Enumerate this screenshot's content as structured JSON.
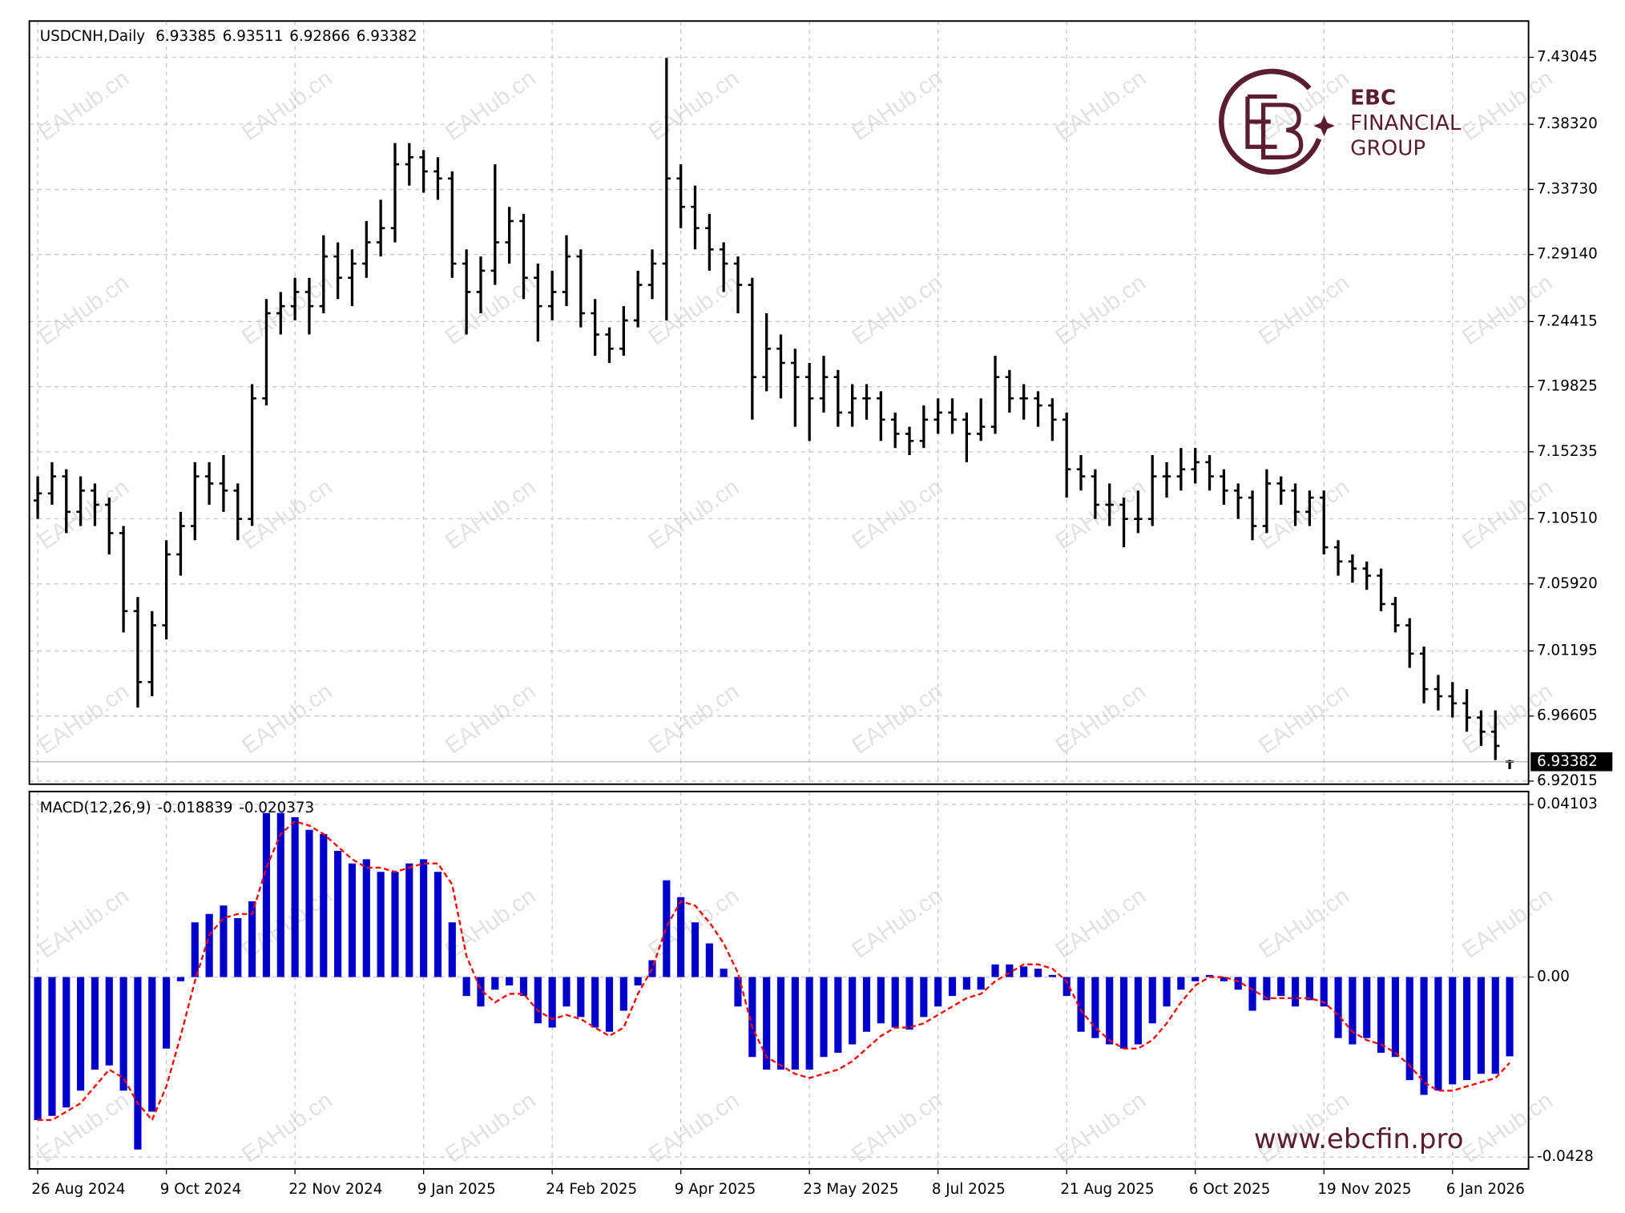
{
  "chart_data": [
    {
      "type": "ohlc",
      "title": "USDCNH,Daily",
      "color": "#000000",
      "grid": true,
      "categories": [
        "26 Aug 2024",
        null,
        null,
        null,
        null,
        null,
        null,
        null,
        null,
        "9 Oct 2024",
        null,
        null,
        null,
        null,
        null,
        null,
        null,
        null,
        "22 Nov 2024",
        null,
        null,
        null,
        null,
        null,
        null,
        null,
        null,
        "9 Jan 2025",
        null,
        null,
        null,
        null,
        null,
        null,
        null,
        null,
        "24 Feb 2025",
        null,
        null,
        null,
        null,
        null,
        null,
        null,
        null,
        "9 Apr 2025",
        null,
        null,
        null,
        null,
        null,
        null,
        null,
        null,
        "23 May 2025",
        null,
        null,
        null,
        null,
        null,
        null,
        null,
        null,
        "8 Jul 2025",
        null,
        null,
        null,
        null,
        null,
        null,
        null,
        null,
        "21 Aug 2025",
        null,
        null,
        null,
        null,
        null,
        null,
        null,
        null,
        "6 Oct 2025",
        null,
        null,
        null,
        null,
        null,
        null,
        null,
        null,
        "19 Nov 2025",
        null,
        null,
        null,
        null,
        null,
        null,
        null,
        null,
        "6 Jan 2026",
        null,
        null,
        null,
        null
      ],
      "ohlc": [
        [
          7.118,
          7.135,
          7.105,
          7.123
        ],
        [
          7.123,
          7.145,
          7.115,
          7.135
        ],
        [
          7.135,
          7.14,
          7.095,
          7.11
        ],
        [
          7.11,
          7.135,
          7.1,
          7.125
        ],
        [
          7.125,
          7.13,
          7.1,
          7.115
        ],
        [
          7.115,
          7.12,
          7.08,
          7.095
        ],
        [
          7.095,
          7.1,
          7.025,
          7.04
        ],
        [
          7.04,
          7.05,
          6.972,
          6.99
        ],
        [
          6.99,
          7.04,
          6.98,
          7.03
        ],
        [
          7.03,
          7.09,
          7.02,
          7.08
        ],
        [
          7.08,
          7.11,
          7.065,
          7.1
        ],
        [
          7.1,
          7.145,
          7.09,
          7.135
        ],
        [
          7.135,
          7.145,
          7.115,
          7.13
        ],
        [
          7.13,
          7.15,
          7.11,
          7.125
        ],
        [
          7.125,
          7.13,
          7.09,
          7.105
        ],
        [
          7.105,
          7.2,
          7.1,
          7.19
        ],
        [
          7.19,
          7.26,
          7.185,
          7.25
        ],
        [
          7.25,
          7.265,
          7.235,
          7.255
        ],
        [
          7.255,
          7.275,
          7.245,
          7.265
        ],
        [
          7.265,
          7.275,
          7.235,
          7.255
        ],
        [
          7.255,
          7.305,
          7.25,
          7.29
        ],
        [
          7.29,
          7.3,
          7.26,
          7.275
        ],
        [
          7.275,
          7.295,
          7.255,
          7.285
        ],
        [
          7.285,
          7.315,
          7.275,
          7.3
        ],
        [
          7.3,
          7.33,
          7.29,
          7.31
        ],
        [
          7.31,
          7.37,
          7.3,
          7.355
        ],
        [
          7.355,
          7.37,
          7.34,
          7.36
        ],
        [
          7.36,
          7.365,
          7.335,
          7.35
        ],
        [
          7.35,
          7.36,
          7.33,
          7.345
        ],
        [
          7.345,
          7.35,
          7.275,
          7.285
        ],
        [
          7.285,
          7.295,
          7.235,
          7.265
        ],
        [
          7.265,
          7.29,
          7.25,
          7.28
        ],
        [
          7.28,
          7.355,
          7.27,
          7.3
        ],
        [
          7.3,
          7.325,
          7.285,
          7.315
        ],
        [
          7.315,
          7.32,
          7.26,
          7.275
        ],
        [
          7.275,
          7.285,
          7.23,
          7.255
        ],
        [
          7.255,
          7.28,
          7.245,
          7.265
        ],
        [
          7.265,
          7.305,
          7.255,
          7.29
        ],
        [
          7.29,
          7.295,
          7.24,
          7.25
        ],
        [
          7.25,
          7.26,
          7.22,
          7.235
        ],
        [
          7.235,
          7.24,
          7.215,
          7.225
        ],
        [
          7.225,
          7.255,
          7.22,
          7.245
        ],
        [
          7.245,
          7.28,
          7.24,
          7.27
        ],
        [
          7.27,
          7.295,
          7.26,
          7.285
        ],
        [
          7.285,
          7.43,
          7.245,
          7.345
        ],
        [
          7.345,
          7.355,
          7.31,
          7.325
        ],
        [
          7.325,
          7.34,
          7.295,
          7.31
        ],
        [
          7.31,
          7.32,
          7.28,
          7.295
        ],
        [
          7.295,
          7.3,
          7.265,
          7.285
        ],
        [
          7.285,
          7.29,
          7.25,
          7.27
        ],
        [
          7.27,
          7.275,
          7.175,
          7.205
        ],
        [
          7.205,
          7.25,
          7.195,
          7.225
        ],
        [
          7.225,
          7.235,
          7.19,
          7.215
        ],
        [
          7.215,
          7.225,
          7.17,
          7.205
        ],
        [
          7.205,
          7.215,
          7.16,
          7.19
        ],
        [
          7.19,
          7.22,
          7.18,
          7.205
        ],
        [
          7.205,
          7.21,
          7.17,
          7.18
        ],
        [
          7.18,
          7.2,
          7.17,
          7.19
        ],
        [
          7.19,
          7.2,
          7.175,
          7.19
        ],
        [
          7.19,
          7.195,
          7.16,
          7.175
        ],
        [
          7.175,
          7.18,
          7.155,
          7.165
        ],
        [
          7.165,
          7.17,
          7.15,
          7.16
        ],
        [
          7.16,
          7.185,
          7.155,
          7.175
        ],
        [
          7.175,
          7.19,
          7.165,
          7.18
        ],
        [
          7.18,
          7.19,
          7.165,
          7.175
        ],
        [
          7.175,
          7.18,
          7.145,
          7.165
        ],
        [
          7.165,
          7.19,
          7.16,
          7.17
        ],
        [
          7.17,
          7.22,
          7.165,
          7.205
        ],
        [
          7.205,
          7.21,
          7.18,
          7.19
        ],
        [
          7.19,
          7.2,
          7.175,
          7.19
        ],
        [
          7.19,
          7.195,
          7.17,
          7.185
        ],
        [
          7.185,
          7.19,
          7.16,
          7.175
        ],
        [
          7.175,
          7.18,
          7.12,
          7.14
        ],
        [
          7.14,
          7.15,
          7.125,
          7.135
        ],
        [
          7.135,
          7.14,
          7.105,
          7.115
        ],
        [
          7.115,
          7.13,
          7.1,
          7.115
        ],
        [
          7.115,
          7.12,
          7.085,
          7.105
        ],
        [
          7.105,
          7.125,
          7.095,
          7.105
        ],
        [
          7.105,
          7.15,
          7.1,
          7.135
        ],
        [
          7.135,
          7.145,
          7.12,
          7.135
        ],
        [
          7.135,
          7.155,
          7.125,
          7.14
        ],
        [
          7.14,
          7.155,
          7.13,
          7.145
        ],
        [
          7.145,
          7.15,
          7.125,
          7.135
        ],
        [
          7.135,
          7.14,
          7.115,
          7.125
        ],
        [
          7.125,
          7.13,
          7.105,
          7.12
        ],
        [
          7.12,
          7.125,
          7.09,
          7.1
        ],
        [
          7.1,
          7.14,
          7.095,
          7.13
        ],
        [
          7.13,
          7.135,
          7.115,
          7.125
        ],
        [
          7.125,
          7.13,
          7.1,
          7.11
        ],
        [
          7.11,
          7.125,
          7.1,
          7.12
        ],
        [
          7.12,
          7.125,
          7.08,
          7.085
        ],
        [
          7.085,
          7.09,
          7.065,
          7.075
        ],
        [
          7.075,
          7.08,
          7.06,
          7.07
        ],
        [
          7.07,
          7.075,
          7.055,
          7.065
        ],
        [
          7.065,
          7.07,
          7.04,
          7.045
        ],
        [
          7.045,
          7.05,
          7.025,
          7.03
        ],
        [
          7.03,
          7.035,
          7.0,
          7.01
        ],
        [
          7.01,
          7.015,
          6.975,
          6.985
        ],
        [
          6.985,
          6.995,
          6.97,
          6.98
        ],
        [
          6.98,
          6.99,
          6.965,
          6.975
        ],
        [
          6.975,
          6.985,
          6.955,
          6.965
        ],
        [
          6.965,
          6.97,
          6.945,
          6.955
        ],
        [
          6.955,
          6.97,
          6.935,
          6.945
        ],
        [
          6.93385,
          6.93511,
          6.92866,
          6.93382
        ]
      ],
      "ylim": [
        6.918,
        7.456
      ],
      "yticks": [
        7.43045,
        {
          "value": 7.3832,
          "label": "7.38320"
        },
        {
          "value": 7.3373,
          "label": "7.33730"
        },
        {
          "value": 7.2914,
          "label": "7.29140"
        },
        7.24415,
        7.19825,
        7.15235,
        {
          "value": 7.1051,
          "label": "7.10510"
        },
        {
          "value": 7.0592,
          "label": "7.05920"
        },
        7.01195,
        6.96605,
        6.92015
      ]
    },
    {
      "type": "macd",
      "title": "MACD(12,26,9)",
      "grid": true,
      "histogram": {
        "color": "#0000cd",
        "values": [
          -0.034,
          -0.033,
          -0.031,
          -0.027,
          -0.022,
          -0.021,
          -0.027,
          -0.041,
          -0.032,
          -0.017,
          -0.001,
          0.013,
          0.015,
          0.017,
          0.014,
          0.018,
          0.039,
          0.039,
          0.038,
          0.035,
          0.034,
          0.03,
          0.027,
          0.028,
          0.025,
          0.025,
          0.027,
          0.028,
          0.025,
          0.013,
          -0.0045,
          -0.007,
          -0.003,
          -0.002,
          -0.0045,
          -0.011,
          -0.012,
          -0.007,
          -0.0095,
          -0.012,
          -0.013,
          -0.008,
          -0.002,
          0.004,
          0.023,
          0.019,
          0.013,
          0.008,
          0.002,
          -0.007,
          -0.019,
          -0.022,
          -0.022,
          -0.022,
          -0.022,
          -0.019,
          -0.018,
          -0.016,
          -0.013,
          -0.011,
          -0.012,
          -0.0125,
          -0.0095,
          -0.007,
          -0.0045,
          -0.003,
          -0.003,
          0.003,
          0.003,
          0.0025,
          0.002,
          0.0005,
          -0.0045,
          -0.013,
          -0.0145,
          -0.016,
          -0.017,
          -0.016,
          -0.011,
          -0.007,
          -0.003,
          -0.001,
          0.0005,
          -0.001,
          -0.003,
          -0.008,
          -0.0055,
          -0.0045,
          -0.007,
          -0.0055,
          -0.007,
          -0.0145,
          -0.016,
          -0.0145,
          -0.018,
          -0.019,
          -0.0245,
          -0.028,
          -0.027,
          -0.0255,
          -0.0245,
          -0.023,
          -0.023,
          -0.018839
        ]
      },
      "signal": {
        "color": "#ff0000",
        "dashed": true,
        "values": [
          -0.034,
          -0.034,
          -0.032,
          -0.03,
          -0.026,
          -0.022,
          -0.024,
          -0.03,
          -0.034,
          -0.026,
          -0.014,
          -0.001,
          0.01,
          0.014,
          0.015,
          0.015,
          0.026,
          0.034,
          0.037,
          0.036,
          0.034,
          0.031,
          0.028,
          0.026,
          0.026,
          0.025,
          0.026,
          0.027,
          0.027,
          0.022,
          0.005,
          -0.003,
          -0.006,
          -0.004,
          -0.004,
          -0.008,
          -0.01,
          -0.009,
          -0.01,
          -0.012,
          -0.014,
          -0.012,
          -0.004,
          0.002,
          0.012,
          0.018,
          0.017,
          0.013,
          0.008,
          0.001,
          -0.012,
          -0.019,
          -0.021,
          -0.023,
          -0.024,
          -0.023,
          -0.022,
          -0.02,
          -0.017,
          -0.014,
          -0.012,
          -0.012,
          -0.011,
          -0.009,
          -0.007,
          -0.005,
          -0.004,
          -0.001,
          0.001,
          0.003,
          0.003,
          0.002,
          -0.001,
          -0.008,
          -0.012,
          -0.015,
          -0.017,
          -0.017,
          -0.015,
          -0.011,
          -0.006,
          -0.002,
          0,
          0,
          -0.001,
          -0.003,
          -0.005,
          -0.005,
          -0.005,
          -0.005,
          -0.006,
          -0.009,
          -0.013,
          -0.015,
          -0.016,
          -0.018,
          -0.021,
          -0.025,
          -0.027,
          -0.027,
          -0.026,
          -0.025,
          -0.024,
          -0.020373
        ]
      },
      "ylim": [
        -0.0456,
        0.0441
      ],
      "yticks": [
        0.04103,
        {
          "value": 0,
          "label": "0.00"
        },
        -0.0428
      ]
    }
  ],
  "watermark": "EAHub.cn",
  "logo": {
    "name": "EBC",
    "lines": [
      "FINANCIAL",
      "GROUP"
    ]
  },
  "website": "www.ebcfin.pro"
}
